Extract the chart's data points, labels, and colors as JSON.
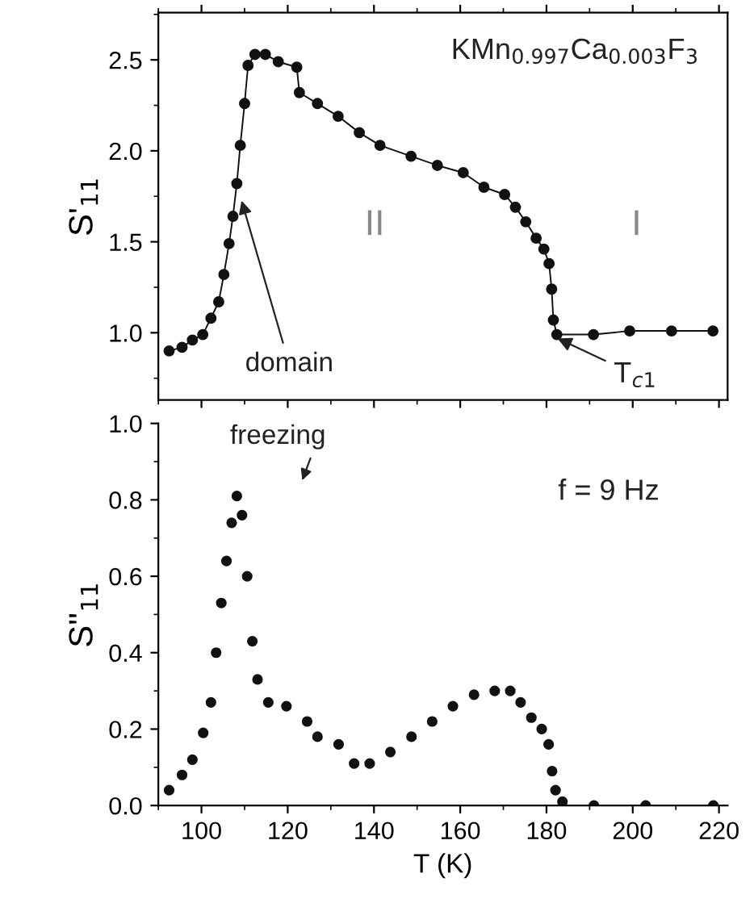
{
  "chart_data": [
    {
      "type": "line",
      "ylabel": "S'$_{11}$",
      "xlim": [
        90,
        222
      ],
      "ylim": [
        0.63,
        2.76
      ],
      "yticks": [
        {
          "value": 1,
          "label": "1.0"
        },
        1.5,
        {
          "value": 2,
          "label": "2.0"
        },
        2.5
      ],
      "tick_labels": "y",
      "marker": "circle",
      "grid": false,
      "legend": false,
      "annotations": [
        "KMn$_{0.997}$Ca$_{0.003}$F$_{3}$",
        "II",
        "I",
        {
          "text": "domain",
          "x": 109.0,
          "y": 1.75
        },
        {
          "text": "T$_{c1}$",
          "x": 181.6,
          "y": 0.98
        }
      ],
      "series": [
        {
          "color": "#111111",
          "x": [
            92.5,
            95.5,
            97.9,
            100.3,
            102.2,
            104.0,
            105.2,
            106.4,
            107.3,
            108.2,
            109.0,
            110.0,
            110.8,
            112.4,
            114.8,
            117.8,
            122.1,
            122.7,
            126.9,
            131.7,
            136.6,
            141.4,
            148.6,
            154.7,
            160.7,
            165.5,
            170.3,
            172.8,
            175.2,
            177.6,
            179.4,
            180.6,
            181.2,
            181.6,
            182.4,
            190.9,
            199.3,
            209.0,
            218.6
          ],
          "values": [
            0.9,
            0.92,
            0.96,
            0.99,
            1.08,
            1.17,
            1.32,
            1.49,
            1.64,
            1.82,
            2.03,
            2.26,
            2.47,
            2.53,
            2.53,
            2.49,
            2.46,
            2.32,
            2.26,
            2.19,
            2.1,
            2.03,
            1.97,
            1.92,
            1.88,
            1.8,
            1.76,
            1.69,
            1.61,
            1.52,
            1.46,
            1.38,
            1.24,
            1.07,
            0.99,
            0.99,
            1.01,
            1.01,
            1.01
          ]
        }
      ]
    },
    {
      "type": "scatter",
      "ylabel": "S''$_{11}$",
      "xlabel": "T (K)",
      "xlim": [
        90,
        222
      ],
      "xticks": [
        100,
        120,
        140,
        160,
        180,
        200,
        220
      ],
      "ylim": [
        0,
        1.0
      ],
      "yticks": [
        {
          "value": 0,
          "label": "0.0"
        },
        0.2,
        0.4,
        0.6,
        0.8,
        {
          "value": 1,
          "label": "1.0"
        }
      ],
      "marker": "circle",
      "grid": false,
      "legend": false,
      "annotations": [
        "freezing",
        "f = 9 Hz"
      ],
      "series": [
        {
          "color": "#111111",
          "x": [
            92.5,
            95.5,
            97.9,
            100.4,
            102.2,
            103.4,
            104.6,
            105.8,
            107.0,
            108.2,
            109.4,
            110.6,
            111.8,
            113.0,
            115.5,
            119.7,
            124.5,
            126.9,
            131.8,
            135.4,
            139.0,
            143.8,
            148.7,
            153.5,
            158.3,
            163.2,
            168.0,
            171.6,
            174.0,
            176.5,
            178.9,
            180.5,
            181.3,
            182.1,
            183.7,
            191.0,
            203.0,
            218.7
          ],
          "values": [
            0.04,
            0.08,
            0.12,
            0.19,
            0.27,
            0.4,
            0.53,
            0.64,
            0.74,
            0.81,
            0.76,
            0.6,
            0.43,
            0.33,
            0.27,
            0.26,
            0.22,
            0.18,
            0.16,
            0.11,
            0.11,
            0.14,
            0.18,
            0.22,
            0.26,
            0.29,
            0.3,
            0.3,
            0.27,
            0.23,
            0.2,
            0.16,
            0.09,
            0.04,
            0.01,
            0.0,
            0.0,
            0.0
          ]
        }
      ]
    }
  ]
}
